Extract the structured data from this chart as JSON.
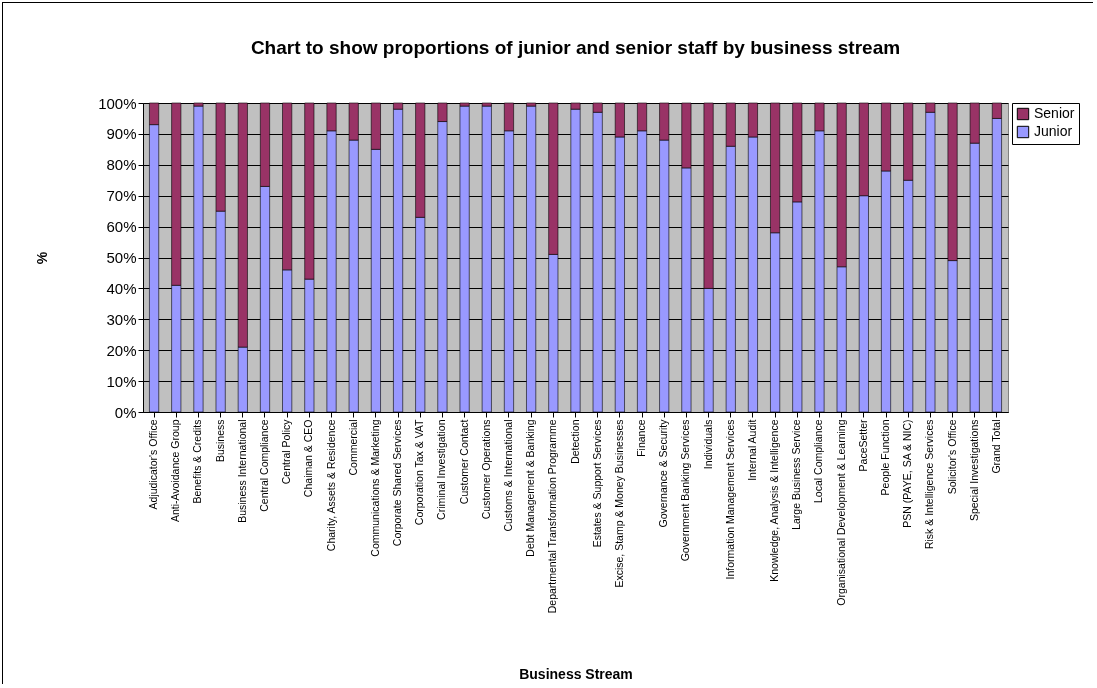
{
  "chart_data": {
    "type": "bar",
    "title": "Chart to show proportions of junior and senior staff by business stream",
    "xlabel": "Business Stream",
    "ylabel": "%",
    "stacked": true,
    "legend": "right",
    "grid": "y",
    "categories": [
      "Adjudicator's Office",
      "Anti-Avoidance Group",
      "Benefits & Credits",
      "Business",
      "Business International",
      "Central Compliance",
      "Central Policy",
      "Chaiman & CEO",
      "Charity, Assets & Residence",
      "Commercial",
      "Communications & Marketing",
      "Corporate Shared Services",
      "Corporation Tax & VAT",
      "Criminal Investigation",
      "Customer Contact",
      "Customer Operations",
      "Customs & International",
      "Debt Management & Banking",
      "Departmental Transformation Programme",
      "Detection",
      "Estates & Support Services",
      "Excise, Stamp & Money Businesses",
      "Finance",
      "Governance & Security",
      "Government Banking Services",
      "Individuals",
      "Information Management Services",
      "Internal Audit",
      "Knowledge, Analysis & Intelligence",
      "Large Business Service",
      "Local Compliance",
      "Organisational Development & Learning",
      "PaceSetter",
      "People Function",
      "PSN (PAYE, SA & NIC)",
      "Risk & Intelligence Services",
      "Solicitor's Office",
      "Special Investigations",
      "Grand Total"
    ],
    "series": [
      {
        "name": "Junior",
        "color": "#9999ff",
        "values": [
          93,
          41,
          99,
          65,
          21,
          73,
          46,
          43,
          91,
          88,
          85,
          98,
          63,
          94,
          99,
          99,
          91,
          99,
          51,
          98,
          97,
          89,
          91,
          88,
          79,
          40,
          86,
          89,
          58,
          68,
          91,
          47,
          70,
          78,
          75,
          97,
          49,
          87,
          95
        ]
      },
      {
        "name": "Senior",
        "color": "#993366",
        "values": [
          7,
          59,
          1,
          35,
          79,
          27,
          54,
          57,
          9,
          12,
          15,
          2,
          37,
          6,
          1,
          1,
          9,
          1,
          49,
          2,
          3,
          11,
          9,
          12,
          21,
          60,
          14,
          11,
          42,
          32,
          9,
          53,
          30,
          22,
          25,
          3,
          51,
          13,
          5
        ]
      }
    ],
    "ylim": [
      0,
      100
    ],
    "yticks": [
      {
        "value": 0,
        "label": "0%"
      },
      {
        "value": 10,
        "label": "10%"
      },
      {
        "value": 20,
        "label": "20%"
      },
      {
        "value": 30,
        "label": "30%"
      },
      {
        "value": 40,
        "label": "40%"
      },
      {
        "value": 50,
        "label": "50%"
      },
      {
        "value": 60,
        "label": "60%"
      },
      {
        "value": 70,
        "label": "70%"
      },
      {
        "value": 80,
        "label": "80%"
      },
      {
        "value": 90,
        "label": "90%"
      },
      {
        "value": 100,
        "label": "100%"
      }
    ]
  }
}
